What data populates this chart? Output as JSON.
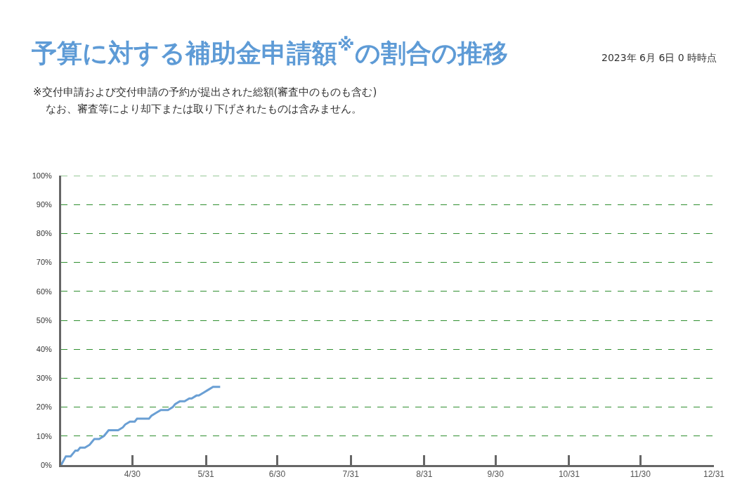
{
  "chart_data": {
    "type": "line",
    "title": "予算に対する補助金申請額$^{※}$の割合の推移",
    "subtitle": "2023年 6月 6日 0 時時点",
    "annotations": [
      "※交付申請および交付申請の予約が提出された総額(審査中のものも含む)",
      "なお、審査等により却下または取り下げされたものは含みません。"
    ],
    "x": [
      "--03-31",
      "--04-02",
      "--04-04",
      "--04-06",
      "--04-07",
      "--04-08",
      "--04-10",
      "--04-12",
      "--04-13",
      "--04-14",
      "--04-16",
      "--04-18",
      "--04-19",
      "--04-20",
      "--04-24",
      "--04-26",
      "--04-27",
      "--04-29",
      "--05-01",
      "--05-02",
      "--05-07",
      "--05-08",
      "--05-10",
      "--05-12",
      "--05-15",
      "--05-17",
      "--05-18",
      "--05-20",
      "--05-22",
      "--05-24",
      "--05-25",
      "--05-27",
      "--05-28",
      "--05-30",
      "--06-01",
      "--06-03",
      "--06-06"
    ],
    "series": [
      {
        "color": "#6a9fd4",
        "values": [
          0,
          3,
          3,
          5,
          5,
          6,
          6,
          7,
          8,
          9,
          9,
          10,
          11,
          12,
          12,
          13,
          14,
          15,
          15,
          16,
          16,
          17,
          18,
          19,
          19,
          20,
          21,
          22,
          22,
          23,
          23,
          24,
          24,
          25,
          26,
          27,
          27
        ]
      }
    ],
    "xlim": [
      "--03-31",
      "--12-31"
    ],
    "xticks": [
      {
        "value": "--04-30",
        "label": "4/30"
      },
      {
        "value": "--05-31",
        "label": "5/31"
      },
      {
        "value": "--06-30",
        "label": "6/30"
      },
      {
        "value": "--07-31",
        "label": "7/31"
      },
      {
        "value": "--08-31",
        "label": "8/31"
      },
      {
        "value": "--09-30",
        "label": "9/30"
      },
      {
        "value": "--10-31",
        "label": "10/31"
      },
      {
        "value": "--11-30",
        "label": "11/30"
      },
      {
        "value": "--12-31",
        "label": "12/31"
      }
    ],
    "ylim": [
      0,
      100
    ],
    "yticks": [
      {
        "value": 0,
        "label": "0%"
      },
      {
        "value": 10,
        "label": "10%"
      },
      {
        "value": 20,
        "label": "20%"
      },
      {
        "value": 30,
        "label": "30%"
      },
      {
        "value": 40,
        "label": "40%"
      },
      {
        "value": 50,
        "label": "50%"
      },
      {
        "value": 60,
        "label": "60%"
      },
      {
        "value": 70,
        "label": "70%"
      },
      {
        "value": 80,
        "label": "80%"
      },
      {
        "value": 90,
        "label": "90%"
      },
      {
        "value": 100,
        "label": "100%"
      }
    ],
    "grid": "y",
    "line_style": "solid"
  }
}
